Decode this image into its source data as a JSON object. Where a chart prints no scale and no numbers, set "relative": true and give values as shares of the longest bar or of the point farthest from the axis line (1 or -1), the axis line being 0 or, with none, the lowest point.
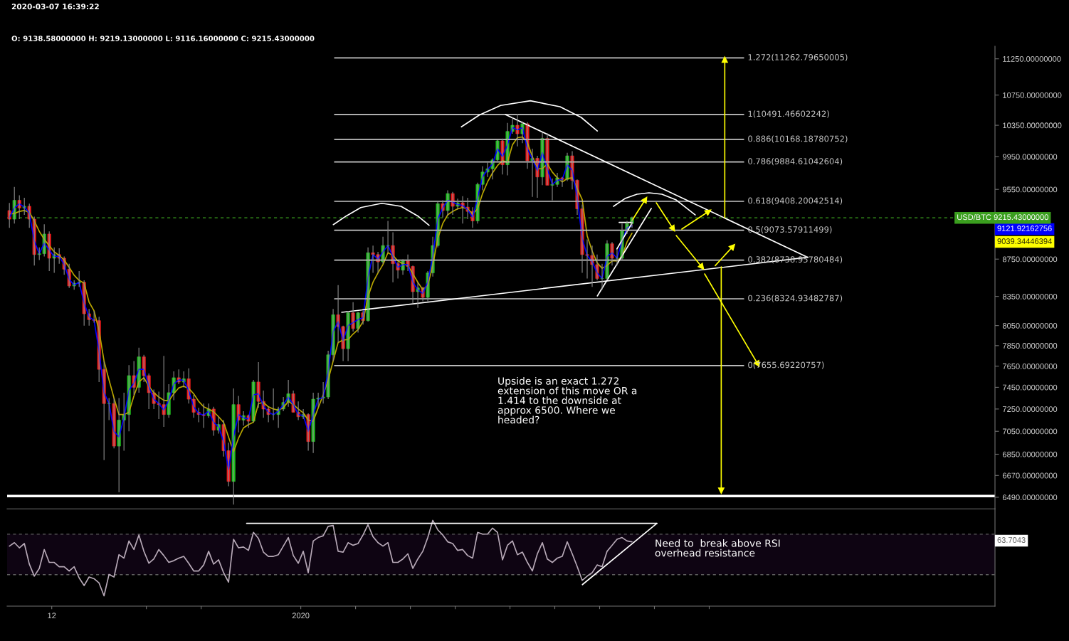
{
  "chart_data": [
    {
      "type": "candlestick",
      "subtitle": "O: 9138.58000000 H: 9219.13000000 L: 9116.16000000 C: 9215.43000000",
      "annotations": [
        "2020-03-07 16:39:22",
        "Upside is an exact 1.272\nextension of this move OR a\n1.414 to the downside at\napprox 6500. Where we\nheaded?",
        "9121.92162756",
        "9039.34446394"
      ],
      "log": true,
      "tick_labels": "y",
      "xlim": [
        "2019-11-03T01:00",
        "2020-05-19T09:00"
      ],
      "ylim": [
        6396,
        11429
      ],
      "yticks": [
        {
          "value": 11250,
          "label": "11250.00000000"
        },
        {
          "value": 10750,
          "label": "10750.00000000"
        },
        {
          "value": 10350,
          "label": "10350.00000000"
        },
        {
          "value": 9950,
          "label": "9950.00000000"
        },
        {
          "value": 9550,
          "label": "9550.00000000"
        },
        {
          "value": 9150,
          "label": null
        },
        {
          "value": 8750,
          "label": "8750.00000000"
        },
        {
          "value": 8350,
          "label": "8350.00000000"
        },
        {
          "value": 8050,
          "label": "8050.00000000"
        },
        {
          "value": 7850,
          "label": "7850.00000000"
        },
        {
          "value": 7650,
          "label": "7650.00000000"
        },
        {
          "value": 7450,
          "label": "7450.00000000"
        },
        {
          "value": 7250,
          "label": "7250.00000000"
        },
        {
          "value": 7050,
          "label": "7050.00000000"
        },
        {
          "value": 6850,
          "label": "6850.00000000"
        },
        {
          "value": 6670,
          "label": "6670.00000000"
        },
        {
          "value": 6490,
          "label": "6490.00000000"
        }
      ],
      "ref_lines": [
        {
          "axis": "y",
          "value": 9215.43,
          "label": "USD/BTC 9215.43000000",
          "color": "#3a9e1e",
          "line_style": "dashed"
        },
        {
          "axis": "y",
          "value": 6500,
          "color": "#ffffff"
        }
      ],
      "x": [
        "2019-11-03T12:00",
        "2019-11-04T12:00",
        "2019-11-05T12:00",
        "2019-11-06T12:00",
        "2019-11-07T12:00",
        "2019-11-08T12:00",
        "2019-11-09T12:00",
        "2019-11-10T12:00",
        "2019-11-11T12:00",
        "2019-11-12T12:00",
        "2019-11-13T12:00",
        "2019-11-14T12:00",
        "2019-11-15T12:00",
        "2019-11-16T12:00",
        "2019-11-17T12:00",
        "2019-11-18T12:00",
        "2019-11-19T12:00",
        "2019-11-20T12:00",
        "2019-11-21T12:00",
        "2019-11-22T12:00",
        "2019-11-23T12:00",
        "2019-11-24T12:00",
        "2019-11-25T12:00",
        "2019-11-26T12:00",
        "2019-11-27T12:00",
        "2019-11-28T12:00",
        "2019-11-29T12:00",
        "2019-11-30T12:00",
        "2019-12-01T12:00",
        "2019-12-02T12:00",
        "2019-12-03T12:00",
        "2019-12-04T12:00",
        "2019-12-05T12:00",
        "2019-12-06T12:00",
        "2019-12-07T12:00",
        "2019-12-08T12:00",
        "2019-12-09T12:00",
        "2019-12-10T12:00",
        "2019-12-11T12:00",
        "2019-12-12T12:00",
        "2019-12-13T12:00",
        "2019-12-14T12:00",
        "2019-12-15T12:00",
        "2019-12-16T12:00",
        "2019-12-17T12:00",
        "2019-12-18T12:00",
        "2019-12-19T12:00",
        "2019-12-20T12:00",
        "2019-12-21T12:00",
        "2019-12-22T12:00",
        "2019-12-23T12:00",
        "2019-12-24T12:00",
        "2019-12-25T12:00",
        "2019-12-26T12:00",
        "2019-12-27T12:00",
        "2019-12-28T12:00",
        "2019-12-29T12:00",
        "2019-12-30T12:00",
        "2019-12-31T12:00",
        "2020-01-01T12:00",
        "2020-01-02T12:00",
        "2020-01-03T12:00",
        "2020-01-04T12:00",
        "2020-01-05T12:00",
        "2020-01-06T12:00",
        "2020-01-07T12:00",
        "2020-01-08T12:00",
        "2020-01-09T12:00",
        "2020-01-10T12:00",
        "2020-01-11T12:00",
        "2020-01-12T12:00",
        "2020-01-13T12:00",
        "2020-01-14T12:00",
        "2020-01-15T12:00",
        "2020-01-16T12:00",
        "2020-01-17T12:00",
        "2020-01-18T12:00",
        "2020-01-19T12:00",
        "2020-01-20T12:00",
        "2020-01-21T12:00",
        "2020-01-22T12:00",
        "2020-01-23T12:00",
        "2020-01-24T12:00",
        "2020-01-25T12:00",
        "2020-01-26T12:00",
        "2020-01-27T12:00",
        "2020-01-28T12:00",
        "2020-01-29T12:00",
        "2020-01-30T12:00",
        "2020-01-31T12:00",
        "2020-02-01T12:00",
        "2020-02-02T12:00",
        "2020-02-03T12:00",
        "2020-02-04T12:00",
        "2020-02-05T12:00",
        "2020-02-06T12:00",
        "2020-02-07T12:00",
        "2020-02-08T12:00",
        "2020-02-09T12:00",
        "2020-02-10T12:00",
        "2020-02-11T12:00",
        "2020-02-12T12:00",
        "2020-02-13T12:00",
        "2020-02-14T12:00",
        "2020-02-15T12:00",
        "2020-02-16T12:00",
        "2020-02-17T12:00",
        "2020-02-18T12:00",
        "2020-02-19T12:00",
        "2020-02-20T12:00",
        "2020-02-21T12:00",
        "2020-02-22T12:00",
        "2020-02-23T12:00",
        "2020-02-24T12:00",
        "2020-02-25T12:00",
        "2020-02-26T12:00",
        "2020-02-27T12:00",
        "2020-02-28T12:00",
        "2020-02-29T12:00",
        "2020-03-01T12:00",
        "2020-03-02T12:00",
        "2020-03-03T12:00",
        "2020-03-04T12:00",
        "2020-03-05T12:00",
        "2020-03-06T12:00",
        "2020-03-07T12:00"
      ],
      "ohlc": [
        [
          9300,
          9390,
          9100,
          9200
        ],
        [
          9200,
          9580,
          9150,
          9420
        ],
        [
          9420,
          9480,
          9200,
          9330
        ],
        [
          9330,
          9450,
          9250,
          9350
        ],
        [
          9350,
          9380,
          9100,
          9200
        ],
        [
          9200,
          9230,
          8680,
          8800
        ],
        [
          8800,
          8880,
          8740,
          8810
        ],
        [
          8810,
          9140,
          8780,
          9030
        ],
        [
          9030,
          9060,
          8620,
          8760
        ],
        [
          8760,
          8880,
          8600,
          8800
        ],
        [
          8800,
          8870,
          8700,
          8760
        ],
        [
          8760,
          8780,
          8580,
          8640
        ],
        [
          8640,
          8700,
          8440,
          8460
        ],
        [
          8460,
          8520,
          8420,
          8490
        ],
        [
          8490,
          8620,
          8450,
          8500
        ],
        [
          8500,
          8520,
          8050,
          8170
        ],
        [
          8170,
          8220,
          8050,
          8110
        ],
        [
          8110,
          8200,
          8080,
          8100
        ],
        [
          8100,
          8140,
          7500,
          7620
        ],
        [
          7620,
          7700,
          6800,
          7300
        ],
        [
          7300,
          7350,
          7150,
          7300
        ],
        [
          7300,
          7350,
          6900,
          6920
        ],
        [
          6920,
          7350,
          6530,
          7150
        ],
        [
          7150,
          7400,
          6880,
          7200
        ],
        [
          7200,
          7660,
          7050,
          7560
        ],
        [
          7560,
          7700,
          7380,
          7450
        ],
        [
          7450,
          7830,
          7400,
          7740
        ],
        [
          7740,
          7760,
          7500,
          7560
        ],
        [
          7560,
          7580,
          7250,
          7400
        ],
        [
          7400,
          7430,
          7250,
          7300
        ],
        [
          7300,
          7410,
          7160,
          7290
        ],
        [
          7290,
          7750,
          7090,
          7200
        ],
        [
          7200,
          7480,
          7170,
          7400
        ],
        [
          7400,
          7600,
          7330,
          7540
        ],
        [
          7540,
          7620,
          7480,
          7500
        ],
        [
          7500,
          7600,
          7450,
          7530
        ],
        [
          7530,
          7630,
          7300,
          7340
        ],
        [
          7340,
          7380,
          7170,
          7220
        ],
        [
          7220,
          7260,
          7130,
          7200
        ],
        [
          7200,
          7300,
          7080,
          7190
        ],
        [
          7190,
          7300,
          7170,
          7250
        ],
        [
          7250,
          7270,
          7010,
          7060
        ],
        [
          7060,
          7180,
          7030,
          7110
        ],
        [
          7110,
          7150,
          6830,
          6880
        ],
        [
          6880,
          6950,
          6580,
          6620
        ],
        [
          6620,
          7440,
          6430,
          7290
        ],
        [
          7290,
          7370,
          7040,
          7150
        ],
        [
          7150,
          7230,
          7100,
          7190
        ],
        [
          7190,
          7200,
          7080,
          7140
        ],
        [
          7140,
          7520,
          7130,
          7500
        ],
        [
          7500,
          7690,
          7260,
          7320
        ],
        [
          7320,
          7420,
          7170,
          7250
        ],
        [
          7250,
          7270,
          7130,
          7200
        ],
        [
          7200,
          7440,
          7150,
          7200
        ],
        [
          7200,
          7270,
          7080,
          7250
        ],
        [
          7250,
          7360,
          7230,
          7310
        ],
        [
          7310,
          7520,
          7270,
          7390
        ],
        [
          7390,
          7420,
          7220,
          7220
        ],
        [
          7220,
          7320,
          7150,
          7180
        ],
        [
          7180,
          7250,
          7160,
          7200
        ],
        [
          7200,
          7210,
          6880,
          6960
        ],
        [
          6960,
          7400,
          6860,
          7340
        ],
        [
          7340,
          7400,
          7270,
          7350
        ],
        [
          7350,
          7500,
          7300,
          7360
        ],
        [
          7360,
          7800,
          7340,
          7760
        ],
        [
          7760,
          8220,
          7700,
          8160
        ],
        [
          8160,
          8470,
          7880,
          8040
        ],
        [
          8040,
          8050,
          7700,
          7820
        ],
        [
          7820,
          8200,
          7700,
          8180
        ],
        [
          8180,
          8290,
          7990,
          8020
        ],
        [
          8020,
          8190,
          7980,
          8180
        ],
        [
          8180,
          8200,
          8060,
          8100
        ],
        [
          8100,
          8880,
          8090,
          8820
        ],
        [
          8820,
          8900,
          8600,
          8800
        ],
        [
          8800,
          8830,
          8600,
          8720
        ],
        [
          8720,
          9000,
          8700,
          8900
        ],
        [
          8900,
          9180,
          8820,
          8900
        ],
        [
          8900,
          9050,
          8500,
          8700
        ],
        [
          8700,
          8720,
          8540,
          8630
        ],
        [
          8630,
          8750,
          8580,
          8730
        ],
        [
          8730,
          8800,
          8620,
          8670
        ],
        [
          8670,
          8680,
          8280,
          8400
        ],
        [
          8400,
          8500,
          8230,
          8440
        ],
        [
          8440,
          8450,
          8300,
          8340
        ],
        [
          8340,
          8620,
          8300,
          8600
        ],
        [
          8600,
          9000,
          8560,
          8900
        ],
        [
          8900,
          9400,
          8880,
          9380
        ],
        [
          9380,
          9420,
          9220,
          9300
        ],
        [
          9300,
          9540,
          9240,
          9500
        ],
        [
          9500,
          9520,
          9250,
          9350
        ],
        [
          9350,
          9440,
          9310,
          9390
        ],
        [
          9390,
          9470,
          9150,
          9340
        ],
        [
          9340,
          9450,
          9200,
          9290
        ],
        [
          9290,
          9340,
          9100,
          9180
        ],
        [
          9180,
          9630,
          9150,
          9610
        ],
        [
          9610,
          9830,
          9540,
          9760
        ],
        [
          9760,
          9880,
          9700,
          9800
        ],
        [
          9800,
          9930,
          9670,
          9910
        ],
        [
          9910,
          10160,
          9880,
          10150
        ],
        [
          10150,
          10180,
          9730,
          9850
        ],
        [
          9850,
          10380,
          9720,
          10270
        ],
        [
          10270,
          10450,
          10240,
          10350
        ],
        [
          10350,
          10500,
          10080,
          10240
        ],
        [
          10240,
          10400,
          10120,
          10370
        ],
        [
          10370,
          10390,
          9800,
          9900
        ],
        [
          9900,
          10050,
          9460,
          9930
        ],
        [
          9930,
          9960,
          9450,
          9700
        ],
        [
          9700,
          10250,
          9600,
          10180
        ],
        [
          10180,
          10250,
          9600,
          9600
        ],
        [
          9600,
          9680,
          9420,
          9610
        ],
        [
          9610,
          9750,
          9580,
          9690
        ],
        [
          9690,
          9700,
          9580,
          9670
        ],
        [
          9670,
          10000,
          9650,
          9960
        ],
        [
          9960,
          10020,
          9550,
          9660
        ],
        [
          9660,
          9670,
          9250,
          9320
        ],
        [
          9320,
          9370,
          8600,
          8800
        ],
        [
          8800,
          8970,
          8540,
          8790
        ],
        [
          8790,
          8900,
          8450,
          8690
        ],
        [
          8690,
          8800,
          8520,
          8540
        ],
        [
          8540,
          8700,
          8420,
          8540
        ],
        [
          8540,
          8960,
          8520,
          8920
        ],
        [
          8920,
          8940,
          8680,
          8760
        ],
        [
          8760,
          8860,
          8680,
          8760
        ],
        [
          8760,
          9150,
          8740,
          9070
        ],
        [
          9070,
          9180,
          9030,
          9150
        ],
        [
          9150,
          9230,
          9100,
          9215.43
        ]
      ],
      "series": [
        {
          "type": "line",
          "color": "#b9a600",
          "values": [
            9260,
            9265,
            9290,
            9300,
            9280,
            9180,
            9060,
            8970,
            8900,
            8830,
            8790,
            8740,
            8660,
            8575,
            8520,
            8490,
            8290,
            8200,
            8000,
            7700,
            7520,
            7350,
            7200,
            7200,
            7220,
            7370,
            7500,
            7540,
            7460,
            7400,
            7360,
            7330,
            7325,
            7390,
            7445,
            7460,
            7440,
            7390,
            7320,
            7270,
            7250,
            7225,
            7180,
            7130,
            7000,
            6870,
            6990,
            7080,
            7110,
            7130,
            7300,
            7310,
            7270,
            7250,
            7240,
            7260,
            7320,
            7290,
            7250,
            7215,
            7150,
            7140,
            7260,
            7380,
            7520,
            7700,
            7880,
            7905,
            7910,
            7965,
            8010,
            8090,
            8350,
            8500,
            8600,
            8690,
            8820,
            8790,
            8730,
            8700,
            8680,
            8590,
            8500,
            8420,
            8470,
            8680,
            8980,
            9150,
            9250,
            9290,
            9320,
            9335,
            9320,
            9260,
            9320,
            9500,
            9640,
            9750,
            9840,
            9900,
            9880,
            10100,
            10190,
            10200,
            10130,
            9950,
            9800,
            9800,
            9860,
            9760,
            9690,
            9640,
            9680,
            9690,
            9560,
            9430,
            9010,
            8840,
            8710,
            8650,
            8680,
            8730,
            8730,
            8780,
            8940,
            9039.34446394
          ]
        },
        {
          "type": "line",
          "color": "#0000ff",
          "values": [
            9220,
            9330,
            9380,
            9340,
            9270,
            8950,
            8810,
            8930,
            8850,
            8780,
            8780,
            8690,
            8530,
            8470,
            8500,
            8280,
            8140,
            8100,
            7800,
            7400,
            7300,
            7050,
            7000,
            7170,
            7420,
            7490,
            7620,
            7620,
            7460,
            7340,
            7300,
            7240,
            7330,
            7480,
            7520,
            7515,
            7420,
            7270,
            7210,
            7195,
            7230,
            7130,
            7090,
            6960,
            6720,
            7000,
            7200,
            7170,
            7160,
            7380,
            7390,
            7280,
            7220,
            7200,
            7230,
            7290,
            7360,
            7290,
            7200,
            7190,
            7050,
            7200,
            7340,
            7355,
            7600,
            7990,
            8090,
            7900,
            8050,
            8080,
            8110,
            8130,
            8550,
            8800,
            8750,
            8830,
            8900,
            8780,
            8660,
            8690,
            8690,
            8500,
            8420,
            8380,
            8500,
            8780,
            9200,
            9330,
            9420,
            9400,
            9370,
            9360,
            9310,
            9220,
            9450,
            9700,
            9790,
            9860,
            10050,
            9950,
            10100,
            10320,
            10290,
            10320,
            10050,
            9920,
            9780,
            10000,
            9800,
            9610,
            9660,
            9670,
            9850,
            9780,
            9450,
            8980,
            8790,
            8720,
            8600,
            8540,
            8780,
            8820,
            8760,
            8950,
            9100,
            9121.92162756
          ]
        },
        {
          "type": "line",
          "name": "1.272(11262.79650005)",
          "color": "#c4c4c4",
          "x": [
            "2020-01-07T19:00",
            "2020-03-29T22:00"
          ],
          "values": [
            11262.79650005,
            11262.79650005
          ]
        },
        {
          "type": "line",
          "name": "1(10491.46602242)",
          "color": "#c4c4c4",
          "x": [
            "2020-01-07T19:00",
            "2020-03-29T22:00"
          ],
          "values": [
            10491.46602242,
            10491.46602242
          ]
        },
        {
          "type": "line",
          "name": "0.886(10168.18780752)",
          "color": "#c4c4c4",
          "x": [
            "2020-01-07T19:00",
            "2020-03-29T22:00"
          ],
          "values": [
            10168.18780752,
            10168.18780752
          ]
        },
        {
          "type": "line",
          "name": "0.786(9884.61042604)",
          "color": "#c4c4c4",
          "x": [
            "2020-01-07T19:00",
            "2020-03-29T22:00"
          ],
          "values": [
            9884.61042604,
            9884.61042604
          ]
        },
        {
          "type": "line",
          "name": "0.618(9408.20042514)",
          "color": "#c4c4c4",
          "x": [
            "2020-01-07T19:00",
            "2020-03-29T22:00"
          ],
          "values": [
            9408.20042514,
            9408.20042514
          ]
        },
        {
          "type": "line",
          "name": "0.5(9073.57911499)",
          "color": "#c4c4c4",
          "x": [
            "2020-01-07T19:00",
            "2020-03-29T22:00"
          ],
          "values": [
            9073.57911499,
            9073.57911499
          ]
        },
        {
          "type": "line",
          "name": "0.382(8738.95780484)",
          "color": "#c4c4c4",
          "x": [
            "2020-01-07T19:00",
            "2020-03-29T22:00"
          ],
          "values": [
            8738.95780484,
            8738.95780484
          ]
        },
        {
          "type": "line",
          "name": "0.236(8324.93482787)",
          "color": "#c4c4c4",
          "x": [
            "2020-01-07T19:00",
            "2020-03-29T22:00"
          ],
          "values": [
            8324.93482787,
            8324.93482787
          ]
        },
        {
          "type": "line",
          "name": "0(7655.69220757)",
          "color": "#c4c4c4",
          "x": [
            "2020-01-07T19:00",
            "2020-03-29T22:00"
          ],
          "values": [
            7655.69220757,
            7655.69220757
          ]
        },
        {
          "type": "line",
          "color": "#ffffff",
          "x": [
            "2020-02-11T02:00",
            "2020-04-11T19:00"
          ],
          "values": [
            10490,
            8770
          ]
        },
        {
          "type": "line",
          "color": "#ffffff",
          "x": [
            "2020-01-09T05:00",
            "2020-04-11T19:00"
          ],
          "values": [
            8185,
            8770
          ]
        },
        {
          "type": "line",
          "color": "#ffffff",
          "x": [
            "2020-02-29T13:00",
            "2020-03-11T09:00"
          ],
          "values": [
            8355,
            9324
          ]
        },
        {
          "type": "line",
          "color": "#ffffff",
          "x": [
            "2020-03-04T11:00",
            "2020-03-07T13:00"
          ],
          "values": [
            8862,
            9157
          ]
        },
        {
          "type": "line",
          "color": "#ffffff",
          "x": [
            "2020-03-04T22:00",
            "2020-03-07T13:00"
          ],
          "values": [
            9162,
            9162
          ]
        },
        {
          "type": "line",
          "color": "#ffffff",
          "x": [
            "2020-01-07T13:00",
            "2020-01-10T04:00",
            "2020-01-13T01:00",
            "2020-01-17T07:00",
            "2020-01-21T03:00",
            "2020-01-24T11:00",
            "2020-01-26T18:00"
          ],
          "values": [
            9137,
            9238,
            9335,
            9385,
            9349,
            9238,
            9129
          ]
        },
        {
          "type": "line",
          "color": "#ffffff",
          "x": [
            "2020-02-02T06:00",
            "2020-02-05T20:00",
            "2020-02-10T03:00",
            "2020-02-16T02:00",
            "2020-02-22T01:00",
            "2020-02-26T07:00",
            "2020-02-29T13:00"
          ],
          "values": [
            10330,
            10484,
            10610,
            10673,
            10594,
            10453,
            10277
          ]
        },
        {
          "type": "line",
          "color": "#ffffff",
          "x": [
            "2020-03-03T19:00",
            "2020-03-06T02:00",
            "2020-03-08T12:00",
            "2020-03-10T22:00",
            "2020-03-13T12:00",
            "2020-03-16T09:00",
            "2020-03-20T05:00"
          ],
          "values": [
            9349,
            9441,
            9492,
            9509,
            9492,
            9424,
            9249
          ]
        },
        {
          "type": "line",
          "color": "#ffff00",
          "marker": "triangle",
          "x": [
            "2020-03-26T03:00",
            "2020-03-26T03:00"
          ],
          "values": [
            9217,
            11244
          ]
        },
        {
          "type": "line",
          "color": "#ffff00",
          "marker": "triangle",
          "x": [
            "2020-03-25T10:00",
            "2020-03-25T10:00"
          ],
          "values": [
            8666,
            6541
          ]
        },
        {
          "type": "line",
          "color": "#ffff00",
          "marker": "triangle",
          "x": [
            "2020-03-24T05:00",
            "2020-03-27T19:00"
          ],
          "values": [
            8679,
            8893
          ]
        },
        {
          "type": "line",
          "color": "#ffff00",
          "marker": "triangle",
          "x": [
            "2020-03-22T02:00",
            "2020-04-01T19:00"
          ],
          "values": [
            8589,
            7668
          ]
        },
        {
          "type": "line",
          "color": "#ffff00",
          "marker": "triangle",
          "x": [
            "2020-03-07T12:00",
            "2020-03-10T05:00"
          ],
          "values": [
            9184,
            9433
          ]
        },
        {
          "type": "line",
          "color": "#ffff00",
          "marker": "triangle",
          "x": [
            "2020-03-12T09:00",
            "2020-03-15T19:00"
          ],
          "values": [
            9391,
            9086
          ]
        },
        {
          "type": "line",
          "color": "#ffff00",
          "marker": "triangle",
          "x": [
            "2020-03-17T12:00",
            "2020-03-22T22:00"
          ],
          "values": [
            9086,
            9291
          ]
        },
        {
          "type": "line",
          "color": "#ffff00",
          "marker": "triangle",
          "x": [
            "2020-03-16T09:00",
            "2020-03-21T14:00"
          ],
          "values": [
            9013,
            8661
          ]
        }
      ]
    },
    {
      "type": "line",
      "relative": true,
      "tick_labels": "x",
      "annotations": [
        "Need to  break above RSI\noverhead resistance",
        "63.7043"
      ],
      "xlim": [
        "2019-11-03T01:00",
        "2020-05-19T09:00"
      ],
      "xticks": [
        {
          "value": "2019-11-12",
          "label": "12"
        },
        {
          "value": "2019-12-01",
          "label": null
        },
        {
          "value": "2019-12-12",
          "label": null
        },
        {
          "value": "2020-01-01",
          "label": "2020"
        },
        {
          "value": "2020-01-12",
          "label": null
        },
        {
          "value": "2020-01-23",
          "label": null
        },
        {
          "value": "2020-02-01",
          "label": null
        },
        {
          "value": "2020-02-12",
          "label": null
        },
        {
          "value": "2020-02-21",
          "label": null
        },
        {
          "value": "2020-03-01",
          "label": null
        },
        {
          "value": "2020-03-12",
          "label": null
        },
        {
          "value": "2020-03-23",
          "label": null
        }
      ],
      "bands": [
        {
          "axis": "y",
          "from": 0.367,
          "to": 0.839,
          "color": "#0e0412"
        }
      ],
      "ref_lines": [
        {
          "axis": "y",
          "value": 0.839,
          "color": "#5e5e5e",
          "line_style": "dashed"
        },
        {
          "axis": "y",
          "value": 0.367,
          "color": "#5e5e5e",
          "line_style": "dashed"
        }
      ],
      "x": [
        "2019-11-03T12:00",
        "2019-11-04T12:00",
        "2019-11-05T12:00",
        "2019-11-06T12:00",
        "2019-11-07T12:00",
        "2019-11-08T12:00",
        "2019-11-09T12:00",
        "2019-11-10T12:00",
        "2019-11-11T12:00",
        "2019-11-12T12:00",
        "2019-11-13T12:00",
        "2019-11-14T12:00",
        "2019-11-15T12:00",
        "2019-11-16T12:00",
        "2019-11-17T12:00",
        "2019-11-18T12:00",
        "2019-11-19T12:00",
        "2019-11-20T12:00",
        "2019-11-21T12:00",
        "2019-11-22T12:00",
        "2019-11-23T12:00",
        "2019-11-24T12:00",
        "2019-11-25T12:00",
        "2019-11-26T12:00",
        "2019-11-27T12:00",
        "2019-11-28T12:00",
        "2019-11-29T12:00",
        "2019-11-30T12:00",
        "2019-12-01T12:00",
        "2019-12-02T12:00",
        "2019-12-03T12:00",
        "2019-12-04T12:00",
        "2019-12-05T12:00",
        "2019-12-06T12:00",
        "2019-12-07T12:00",
        "2019-12-08T12:00",
        "2019-12-09T12:00",
        "2019-12-10T12:00",
        "2019-12-11T12:00",
        "2019-12-12T12:00",
        "2019-12-13T12:00",
        "2019-12-14T12:00",
        "2019-12-15T12:00",
        "2019-12-16T12:00",
        "2019-12-17T12:00",
        "2019-12-18T12:00",
        "2019-12-19T12:00",
        "2019-12-20T12:00",
        "2019-12-21T12:00",
        "2019-12-22T12:00",
        "2019-12-23T12:00",
        "2019-12-24T12:00",
        "2019-12-25T12:00",
        "2019-12-26T12:00",
        "2019-12-27T12:00",
        "2019-12-28T12:00",
        "2019-12-29T12:00",
        "2019-12-30T12:00",
        "2019-12-31T12:00",
        "2020-01-01T12:00",
        "2020-01-02T12:00",
        "2020-01-03T12:00",
        "2020-01-04T12:00",
        "2020-01-05T12:00",
        "2020-01-06T12:00",
        "2020-01-07T12:00",
        "2020-01-08T12:00",
        "2020-01-09T12:00",
        "2020-01-10T12:00",
        "2020-01-11T12:00",
        "2020-01-12T12:00",
        "2020-01-13T12:00",
        "2020-01-14T12:00",
        "2020-01-15T12:00",
        "2020-01-16T12:00",
        "2020-01-17T12:00",
        "2020-01-18T12:00",
        "2020-01-19T12:00",
        "2020-01-20T12:00",
        "2020-01-21T12:00",
        "2020-01-22T12:00",
        "2020-01-23T12:00",
        "2020-01-24T12:00",
        "2020-01-25T12:00",
        "2020-01-26T12:00",
        "2020-01-27T12:00",
        "2020-01-28T12:00",
        "2020-01-29T12:00",
        "2020-01-30T12:00",
        "2020-01-31T12:00",
        "2020-02-01T12:00",
        "2020-02-02T12:00",
        "2020-02-03T12:00",
        "2020-02-04T12:00",
        "2020-02-05T12:00",
        "2020-02-06T12:00",
        "2020-02-07T12:00",
        "2020-02-08T12:00",
        "2020-02-09T12:00",
        "2020-02-10T12:00",
        "2020-02-11T12:00",
        "2020-02-12T12:00",
        "2020-02-13T12:00",
        "2020-02-14T12:00",
        "2020-02-15T12:00",
        "2020-02-16T12:00",
        "2020-02-17T12:00",
        "2020-02-18T12:00",
        "2020-02-19T12:00",
        "2020-02-20T12:00",
        "2020-02-21T12:00",
        "2020-02-22T12:00",
        "2020-02-23T12:00",
        "2020-02-24T12:00",
        "2020-02-25T12:00",
        "2020-02-26T12:00",
        "2020-02-27T12:00",
        "2020-02-28T12:00",
        "2020-02-29T12:00",
        "2020-03-01T12:00",
        "2020-03-02T12:00",
        "2020-03-03T12:00",
        "2020-03-04T12:00",
        "2020-03-05T12:00",
        "2020-03-06T12:00",
        "2020-03-07T12:00"
      ],
      "series": [
        {
          "color": "#b8aab8",
          "values": [
            0.7,
            0.74,
            0.68,
            0.73,
            0.49,
            0.35,
            0.44,
            0.66,
            0.51,
            0.51,
            0.46,
            0.46,
            0.41,
            0.46,
            0.33,
            0.24,
            0.34,
            0.32,
            0.27,
            0.12,
            0.37,
            0.34,
            0.6,
            0.56,
            0.76,
            0.66,
            0.83,
            0.64,
            0.5,
            0.55,
            0.66,
            0.59,
            0.51,
            0.53,
            0.56,
            0.58,
            0.5,
            0.41,
            0.41,
            0.48,
            0.64,
            0.49,
            0.54,
            0.39,
            0.28,
            0.78,
            0.68,
            0.69,
            0.65,
            0.86,
            0.79,
            0.63,
            0.58,
            0.58,
            0.6,
            0.7,
            0.8,
            0.59,
            0.5,
            0.64,
            0.39,
            0.76,
            0.8,
            0.82,
            0.93,
            0.94,
            0.64,
            0.63,
            0.74,
            0.71,
            0.73,
            0.83,
            0.95,
            0.81,
            0.74,
            0.7,
            0.74,
            0.51,
            0.51,
            0.55,
            0.61,
            0.44,
            0.55,
            0.64,
            0.8,
            1,
            0.89,
            0.83,
            0.75,
            0.73,
            0.65,
            0.66,
            0.59,
            0.56,
            0.86,
            0.84,
            0.84,
            0.91,
            0.86,
            0.54,
            0.71,
            0.76,
            0.6,
            0.63,
            0.51,
            0.41,
            0.61,
            0.74,
            0.55,
            0.51,
            0.56,
            0.58,
            0.75,
            0.61,
            0.46,
            0.3,
            0.35,
            0.39,
            0.48,
            0.46,
            0.64,
            0.71,
            0.78,
            0.8,
            0.76,
            0.75
          ]
        },
        {
          "color": "#ffffff",
          "x": [
            "2019-12-21T03:00",
            "2020-03-12T12:00"
          ],
          "values": [
            0.965,
            0.965
          ]
        },
        {
          "color": "#ffffff",
          "x": [
            "2020-02-26T13:00",
            "2020-03-12T12:00"
          ],
          "values": [
            0.251,
            0.965
          ]
        }
      ]
    }
  ]
}
